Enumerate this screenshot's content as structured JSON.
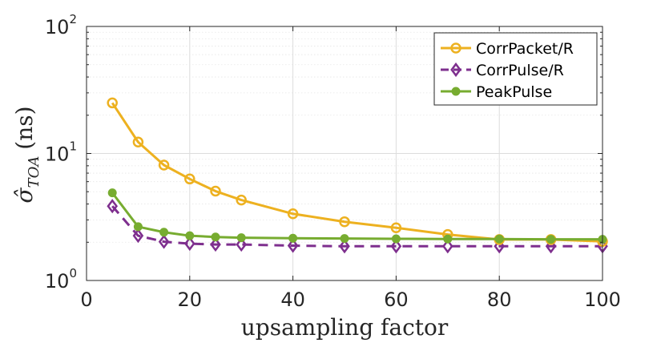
{
  "chart_data": {
    "type": "line",
    "xlabel": "upsampling factor",
    "ylabel": "σ̂ (ns)",
    "ylabel_main": "σ̂",
    "ylabel_sub": "TOA",
    "ylabel_units": "(ns)",
    "yscale": "log",
    "xlim": [
      0,
      100
    ],
    "ylim": [
      1,
      100
    ],
    "xticks": [
      0,
      20,
      40,
      60,
      80,
      100
    ],
    "xtick_labels": [
      "0",
      "20",
      "40",
      "60",
      "80",
      "100"
    ],
    "yticks": [
      1,
      10,
      100
    ],
    "ytick_labels": [
      {
        "base": "10",
        "exp": "0"
      },
      {
        "base": "10",
        "exp": "1"
      },
      {
        "base": "10",
        "exp": "2"
      }
    ],
    "grid": true,
    "legend_position": "top-right",
    "x": [
      5,
      10,
      15,
      20,
      25,
      30,
      40,
      50,
      60,
      70,
      80,
      90,
      100
    ],
    "series": [
      {
        "name": "CorrPacket/R",
        "color": "#EDB120",
        "marker": "circle",
        "line": "solid",
        "values": [
          25,
          12.3,
          8.1,
          6.3,
          5.05,
          4.3,
          3.35,
          2.9,
          2.6,
          2.3,
          2.1,
          2.1,
          2.03
        ]
      },
      {
        "name": "CorrPulse/R",
        "color": "#7E2F8E",
        "marker": "diamond",
        "line": "dashed",
        "values": [
          3.85,
          2.25,
          2.02,
          1.95,
          1.92,
          1.92,
          1.88,
          1.86,
          1.86,
          1.86,
          1.86,
          1.86,
          1.86
        ]
      },
      {
        "name": "PeakPulse",
        "color": "#77AC30",
        "marker": "filled-circle",
        "line": "solid",
        "values": [
          4.9,
          2.65,
          2.4,
          2.25,
          2.2,
          2.17,
          2.15,
          2.14,
          2.13,
          2.12,
          2.12,
          2.11,
          2.11
        ]
      }
    ]
  }
}
